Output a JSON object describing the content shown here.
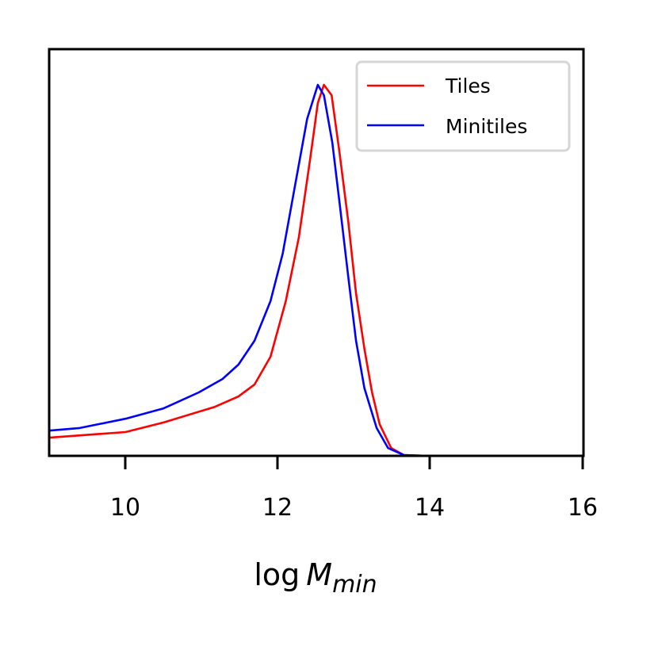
{
  "chart_data": {
    "type": "line",
    "title": "",
    "xlabel": "log M_min",
    "xlabel_parts": {
      "prefix": "log",
      "var": "M",
      "sub": "min"
    },
    "ylabel": "",
    "xlim": [
      9,
      16
    ],
    "ylim": [
      0,
      1.0
    ],
    "x_ticks": [
      "10",
      "12",
      "14",
      "16"
    ],
    "y_ticks": [],
    "grid": false,
    "legend_position": "upper right",
    "series": [
      {
        "name": "Tiles",
        "color": "#ff0000",
        "x": [
          9.0,
          10.0,
          10.5,
          11.17,
          11.48,
          11.69,
          11.9,
          12.1,
          12.27,
          12.42,
          12.52,
          12.6,
          12.7,
          12.8,
          12.92,
          13.02,
          13.13,
          13.23,
          13.33,
          13.48,
          13.65,
          13.96,
          16.0
        ],
        "y": [
          0.049,
          0.064,
          0.09,
          0.132,
          0.16,
          0.192,
          0.267,
          0.417,
          0.588,
          0.801,
          0.951,
          1.0,
          0.972,
          0.823,
          0.63,
          0.438,
          0.288,
          0.171,
          0.085,
          0.021,
          0.002,
          0.0,
          0.0
        ]
      },
      {
        "name": "Minitiles",
        "color": "#0000ff",
        "x": [
          9.0,
          9.4,
          10.0,
          10.5,
          10.96,
          11.27,
          11.48,
          11.69,
          11.9,
          12.06,
          12.21,
          12.38,
          12.52,
          12.6,
          12.71,
          12.81,
          12.92,
          13.02,
          13.13,
          13.29,
          13.44,
          13.65,
          13.96,
          16.0
        ],
        "y": [
          0.068,
          0.075,
          0.1,
          0.128,
          0.171,
          0.207,
          0.246,
          0.31,
          0.417,
          0.545,
          0.716,
          0.908,
          1.0,
          0.972,
          0.844,
          0.673,
          0.481,
          0.31,
          0.182,
          0.075,
          0.021,
          0.002,
          0.0,
          0.0
        ]
      }
    ]
  },
  "legend": {
    "items": [
      {
        "label": "Tiles",
        "color": "#ff0000"
      },
      {
        "label": "Minitiles",
        "color": "#0000ff"
      }
    ]
  },
  "axes": {
    "x_ticks": [
      "10",
      "12",
      "14",
      "16"
    ],
    "xlabel_prefix": "log",
    "xlabel_var": "M",
    "xlabel_sub": "min"
  }
}
